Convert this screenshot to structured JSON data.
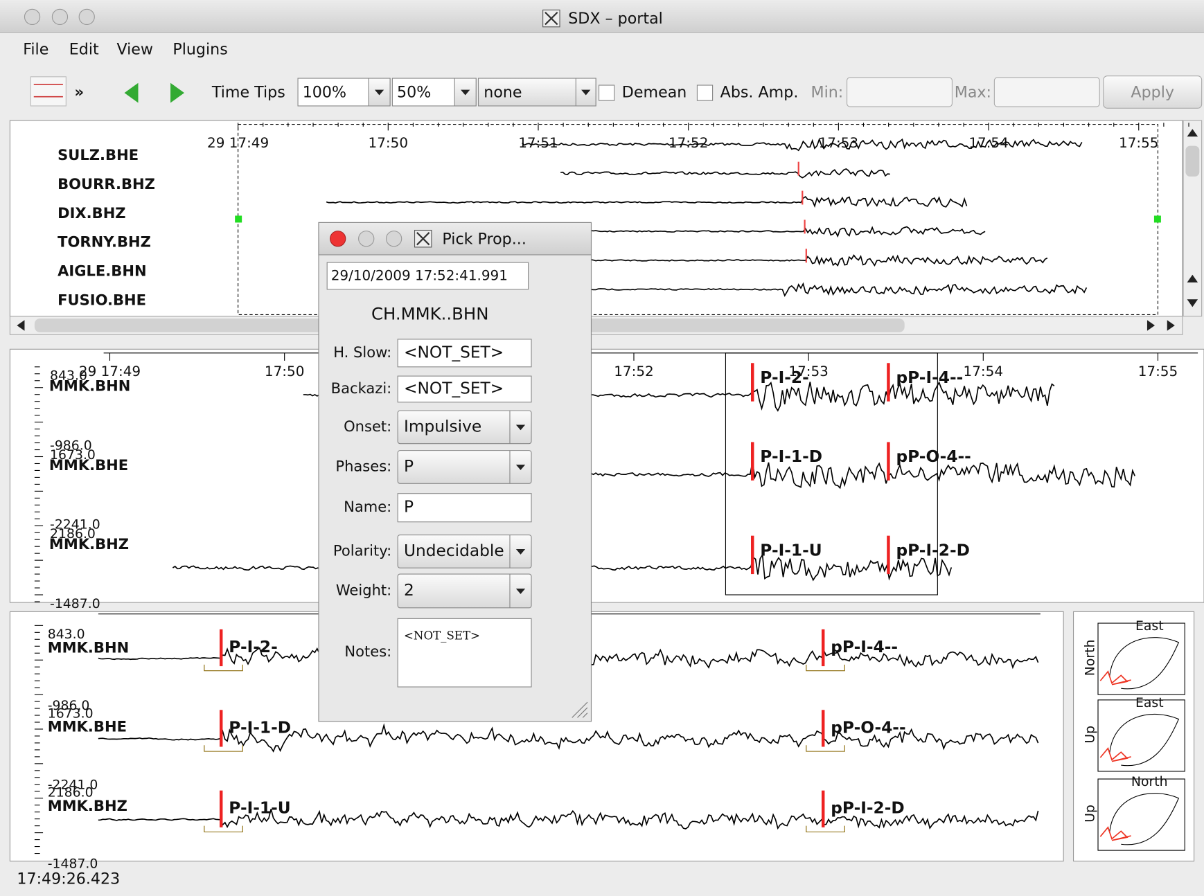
{
  "window": {
    "title": "SDX – portal"
  },
  "menu": [
    "File",
    "Edit",
    "View",
    "Plugins"
  ],
  "toolbar": {
    "time_tips": "Time Tips",
    "zoom": "100%",
    "overlap": "50%",
    "filter": "none",
    "demean": "Demean",
    "abs_amp": "Abs. Amp.",
    "min": "Min:",
    "max": "Max:",
    "apply": "Apply"
  },
  "overview": {
    "stations": [
      "SULZ.BHE",
      "BOURR.BHZ",
      "DIX.BHZ",
      "TORNY.BHZ",
      "AIGLE.BHN",
      "FUSIO.BHE"
    ],
    "times": [
      "29 17:49",
      "17:50",
      "17:51",
      "17:52",
      "17:53",
      "17:54",
      "17:55"
    ]
  },
  "zoom_panel": {
    "times": [
      "29 17:49",
      "17:50",
      "17:52",
      "17:53",
      "17:54",
      "17:55"
    ],
    "traces": [
      {
        "name": "MMK.BHN",
        "max": "843.0",
        "min": "-986.0",
        "picks": [
          "P-I-2-",
          "pP-I-4--"
        ]
      },
      {
        "name": "MMK.BHE",
        "max": "1673.0",
        "min": "-2241.0",
        "picks": [
          "P-I-1-D",
          "pP-O-4--"
        ]
      },
      {
        "name": "MMK.BHZ",
        "max": "2186.0",
        "min": "-1487.0",
        "picks": [
          "P-I-1-U",
          "pP-I-2-D"
        ]
      }
    ]
  },
  "detail_panel": {
    "traces": [
      {
        "name": "MMK.BHN",
        "max": "843.0",
        "min": "-986.0",
        "picks": [
          "P-I-2-",
          "pP-I-4--"
        ]
      },
      {
        "name": "MMK.BHE",
        "max": "1673.0",
        "min": "-2241.0",
        "picks": [
          "P-I-1-D",
          "pP-O-4--"
        ]
      },
      {
        "name": "MMK.BHZ",
        "max": "2186.0",
        "min": "-1487.0",
        "picks": [
          "P-I-1-U",
          "pP-I-2-D"
        ]
      }
    ]
  },
  "particle_motion": [
    {
      "x": "East",
      "y": "North"
    },
    {
      "x": "East",
      "y": "Up"
    },
    {
      "x": "North",
      "y": "Up"
    }
  ],
  "dialog": {
    "title": "Pick Prop...",
    "time": "29/10/2009 17:52:41.991",
    "channel": "CH.MMK..BHN",
    "fields": [
      {
        "label": "H. Slow:",
        "value": "<NOT_SET>"
      },
      {
        "label": "Backazi:",
        "value": "<NOT_SET>"
      },
      {
        "label": "Onset:",
        "value": "Impulsive"
      },
      {
        "label": "Phases:",
        "value": "P"
      },
      {
        "label": "Name:",
        "value": "P"
      },
      {
        "label": "Polarity:",
        "value": "Undecidable"
      },
      {
        "label": "Weight:",
        "value": "2"
      },
      {
        "label": "Notes:",
        "value": "<NOT_SET>"
      }
    ]
  },
  "status": "17:49:26.423"
}
